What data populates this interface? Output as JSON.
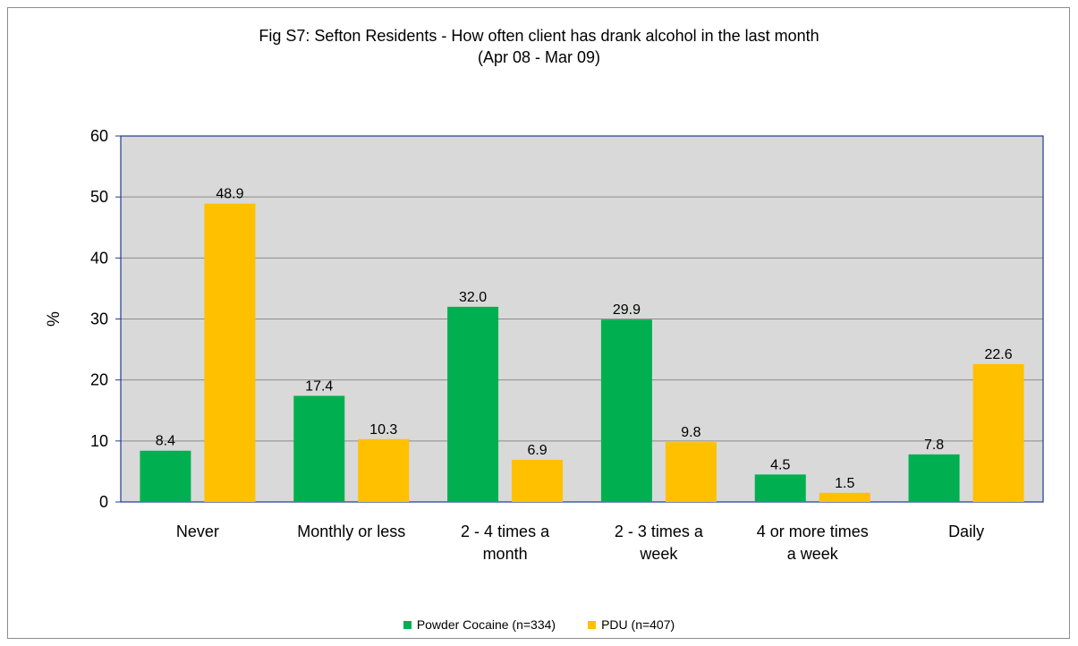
{
  "chart_data": {
    "type": "bar",
    "title": "Fig S7: Sefton Residents - How often client has drank alcohol in the last month",
    "subtitle": "(Apr 08 - Mar 09)",
    "xlabel": "",
    "ylabel": "%",
    "ylim": [
      0,
      60
    ],
    "yticks": [
      0,
      10,
      20,
      30,
      40,
      50,
      60
    ],
    "grid": true,
    "legend_position": "bottom",
    "categories": [
      [
        "Never"
      ],
      [
        "Monthly or less"
      ],
      [
        "2 - 4 times a",
        "month"
      ],
      [
        "2 - 3 times a",
        "week"
      ],
      [
        "4 or more times",
        "a week"
      ],
      [
        "Daily"
      ]
    ],
    "series": [
      {
        "name": "Powder Cocaine (n=334)",
        "color": "#00b050",
        "values": [
          8.4,
          17.4,
          32.0,
          29.9,
          4.5,
          7.8
        ]
      },
      {
        "name": "PDU (n=407)",
        "color": "#ffc000",
        "values": [
          48.9,
          10.3,
          6.9,
          9.8,
          1.5,
          22.6
        ]
      }
    ],
    "plot_background": "#d9d9d9",
    "axis_color": "#1f3a93"
  }
}
